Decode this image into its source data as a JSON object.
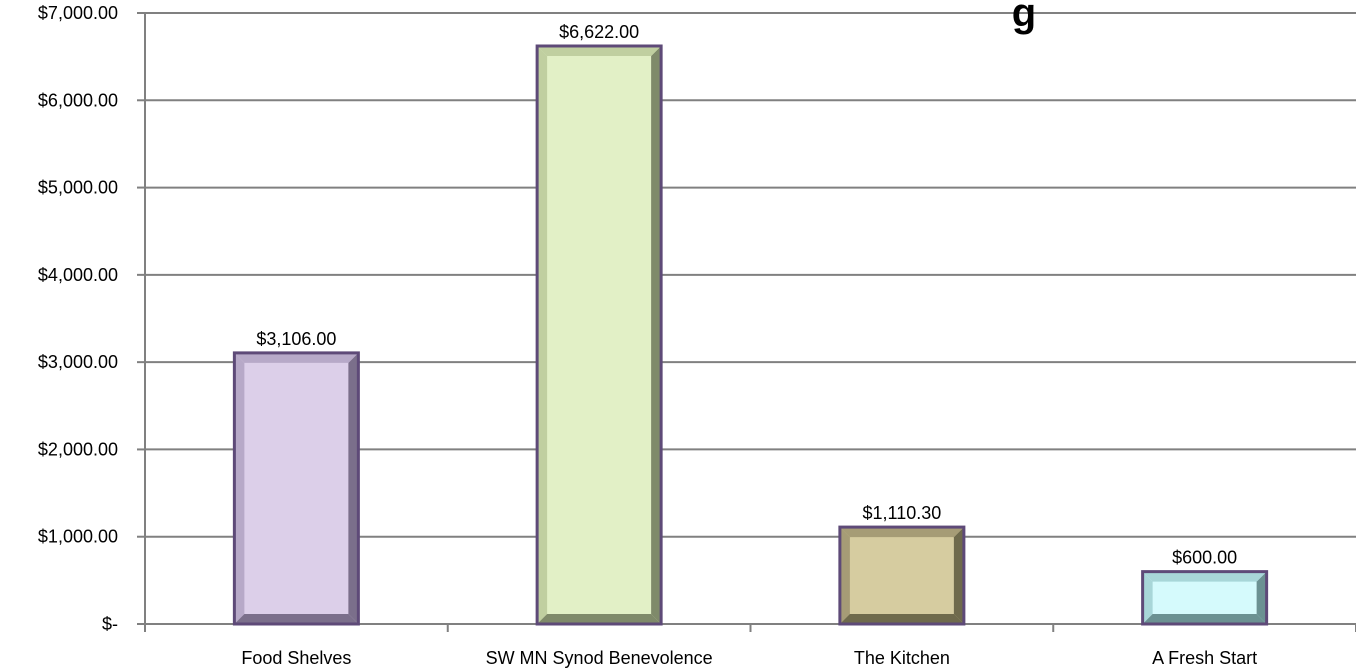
{
  "chart_data": {
    "type": "bar",
    "title_visible_fragment": "g",
    "categories": [
      "Food Shelves",
      "SW MN Synod Benevolence",
      "The Kitchen",
      "A Fresh Start"
    ],
    "values": [
      3106.0,
      6622.0,
      1110.3,
      600.0
    ],
    "data_labels": [
      "$3,106.00",
      "$6,622.00",
      "$1,110.30",
      "$600.00"
    ],
    "y_ticks": [
      {
        "value": 0,
        "label": "$-"
      },
      {
        "value": 1000,
        "label": "$1,000.00"
      },
      {
        "value": 2000,
        "label": "$2,000.00"
      },
      {
        "value": 3000,
        "label": "$3,000.00"
      },
      {
        "value": 4000,
        "label": "$4,000.00"
      },
      {
        "value": 5000,
        "label": "$5,000.00"
      },
      {
        "value": 6000,
        "label": "$6,000.00"
      },
      {
        "value": 7000,
        "label": "$7,000.00"
      }
    ],
    "ylim": [
      0,
      7000
    ],
    "grid": true,
    "bar_colors": [
      {
        "face": "#dccfe9",
        "dark": "#7b6f8b",
        "light": "#b7a9c8"
      },
      {
        "face": "#e2f0c6",
        "dark": "#7f8a6a",
        "light": "#c0cfa0"
      },
      {
        "face": "#d6cca0",
        "dark": "#6f6a4c",
        "light": "#a69c76"
      },
      {
        "face": "#d5fafc",
        "dark": "#6b9192",
        "light": "#a8d6d8"
      }
    ],
    "bar_border_color": "#5e4a78",
    "grid_color": "#808080"
  }
}
